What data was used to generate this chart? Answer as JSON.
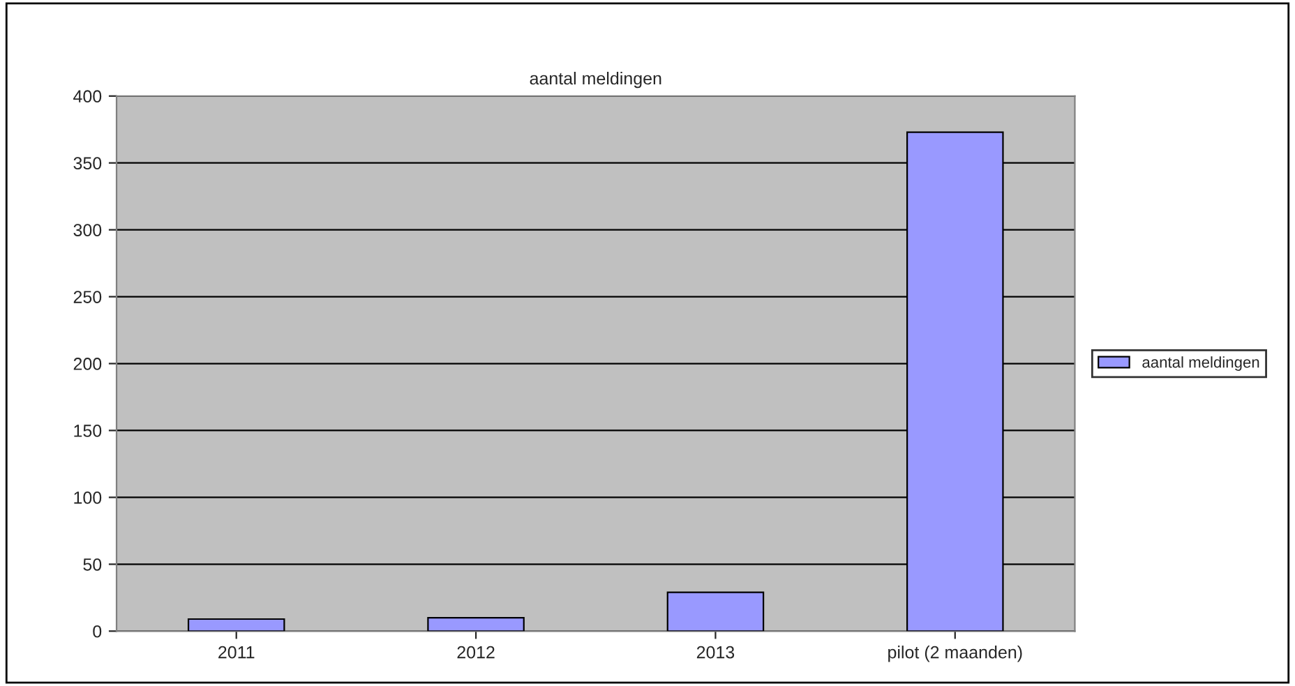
{
  "chart_data": {
    "type": "bar",
    "title": "aantal meldingen",
    "categories": [
      "2011",
      "2012",
      "2013",
      "pilot (2 maanden)"
    ],
    "series": [
      {
        "name": "aantal meldingen",
        "color": "#9999ff",
        "values": [
          9,
          10,
          29,
          373
        ]
      }
    ],
    "ylim": [
      0,
      400
    ],
    "yticks": [
      0,
      50,
      100,
      150,
      200,
      250,
      300,
      350,
      400
    ],
    "grid": "y",
    "legend": "right"
  }
}
